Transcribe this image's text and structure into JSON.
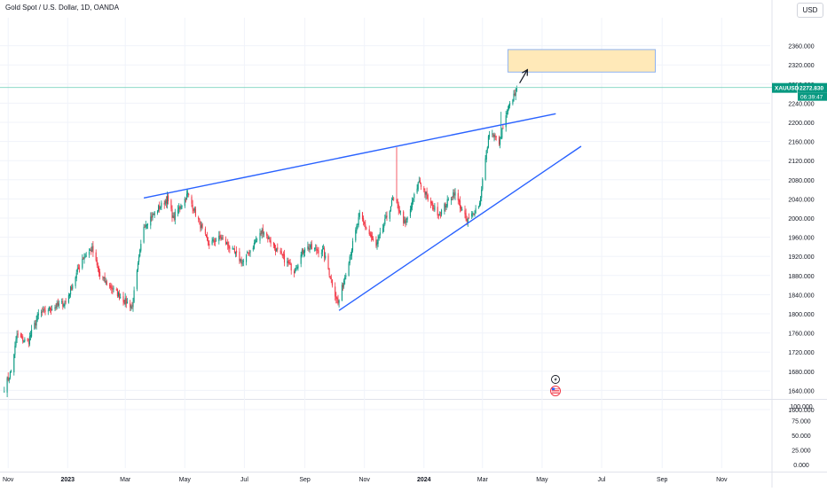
{
  "header": {
    "title": "Gold Spot / U.S. Dollar, 1D, OANDA",
    "currency_button": "USD"
  },
  "price_tag": {
    "symbol": "XAUUSD",
    "price": "2272.830",
    "countdown": "06:39:47",
    "color": "#089981"
  },
  "colors": {
    "up": "#089981",
    "down": "#f23645",
    "trendline": "#2962ff",
    "target_fill": "#ffe9b8",
    "target_stroke": "#8fb3f0",
    "grid": "#f0f3fa",
    "axis_text": "#131722",
    "price_line": "#7dd3c0"
  },
  "icons": [
    "flash-icon",
    "us-flag-icon"
  ],
  "chart_data": {
    "type": "candlestick",
    "title": "Gold Spot / U.S. Dollar, 1D, OANDA",
    "x_tick_labels": [
      "Nov",
      "2023",
      "Mar",
      "May",
      "Jul",
      "Sep",
      "Nov",
      "2024",
      "Mar",
      "May",
      "Jul",
      "Sep",
      "Nov"
    ],
    "y_tick_labels": [
      "1600.000",
      "1640.000",
      "1680.000",
      "1720.000",
      "1760.000",
      "1800.000",
      "1840.000",
      "1880.000",
      "1920.000",
      "1960.000",
      "2000.000",
      "2040.000",
      "2080.000",
      "2120.000",
      "2160.000",
      "2200.000",
      "2240.000",
      "2280.000",
      "2320.000",
      "2360.000"
    ],
    "volume_tick_labels": [
      "100.000",
      "75.000",
      "50.000",
      "25.000",
      "0.000"
    ],
    "ylim": [
      1575,
      2380
    ],
    "last_price": 2272.83,
    "anchors": [
      {
        "date": "2022-10-28",
        "price": 1645
      },
      {
        "date": "2022-11-04",
        "price": 1680
      },
      {
        "date": "2022-11-10",
        "price": 1755
      },
      {
        "date": "2022-11-21",
        "price": 1740
      },
      {
        "date": "2022-12-02",
        "price": 1798
      },
      {
        "date": "2022-12-13",
        "price": 1810
      },
      {
        "date": "2022-12-30",
        "price": 1824
      },
      {
        "date": "2023-01-16",
        "price": 1916
      },
      {
        "date": "2023-01-26",
        "price": 1935
      },
      {
        "date": "2023-02-03",
        "price": 1878
      },
      {
        "date": "2023-02-28",
        "price": 1828
      },
      {
        "date": "2023-03-08",
        "price": 1815
      },
      {
        "date": "2023-03-20",
        "price": 1985
      },
      {
        "date": "2023-04-04",
        "price": 2020
      },
      {
        "date": "2023-04-13",
        "price": 2040
      },
      {
        "date": "2023-04-19",
        "price": 2000
      },
      {
        "date": "2023-05-04",
        "price": 2050
      },
      {
        "date": "2023-05-25",
        "price": 1945
      },
      {
        "date": "2023-06-07",
        "price": 1960
      },
      {
        "date": "2023-06-29",
        "price": 1907
      },
      {
        "date": "2023-07-20",
        "price": 1975
      },
      {
        "date": "2023-08-02",
        "price": 1935
      },
      {
        "date": "2023-08-21",
        "price": 1890
      },
      {
        "date": "2023-09-01",
        "price": 1940
      },
      {
        "date": "2023-09-20",
        "price": 1930
      },
      {
        "date": "2023-10-05",
        "price": 1820
      },
      {
        "date": "2023-10-27",
        "price": 2005
      },
      {
        "date": "2023-11-13",
        "price": 1940
      },
      {
        "date": "2023-11-30",
        "price": 2038
      },
      {
        "date": "2023-12-04",
        "price": 2030
      },
      {
        "date": "2023-12-13",
        "price": 1985
      },
      {
        "date": "2023-12-27",
        "price": 2078
      },
      {
        "date": "2024-01-08",
        "price": 2028
      },
      {
        "date": "2024-01-17",
        "price": 2008
      },
      {
        "date": "2024-02-01",
        "price": 2055
      },
      {
        "date": "2024-02-14",
        "price": 1992
      },
      {
        "date": "2024-02-27",
        "price": 2030
      },
      {
        "date": "2024-03-01",
        "price": 2080
      },
      {
        "date": "2024-03-08",
        "price": 2180
      },
      {
        "date": "2024-03-19",
        "price": 2158
      },
      {
        "date": "2024-03-21",
        "price": 2182
      },
      {
        "date": "2024-03-28",
        "price": 2230
      },
      {
        "date": "2024-04-05",
        "price": 2272.83
      }
    ],
    "drawings": [
      {
        "type": "trendline",
        "from": {
          "date": "2023-03-20",
          "price": 2042
        },
        "to": {
          "date": "2024-05-15",
          "price": 2218
        }
      },
      {
        "type": "trendline",
        "from": {
          "date": "2023-10-06",
          "price": 1807
        },
        "to": {
          "date": "2024-06-10",
          "price": 2150
        }
      },
      {
        "type": "rectangle",
        "from": {
          "date": "2024-03-27",
          "price": 2305
        },
        "to": {
          "date": "2024-08-25",
          "price": 2352
        }
      },
      {
        "type": "arrow",
        "from": {
          "date": "2024-04-08",
          "price": 2282
        },
        "to": {
          "date": "2024-04-16",
          "price": 2310
        }
      }
    ]
  }
}
